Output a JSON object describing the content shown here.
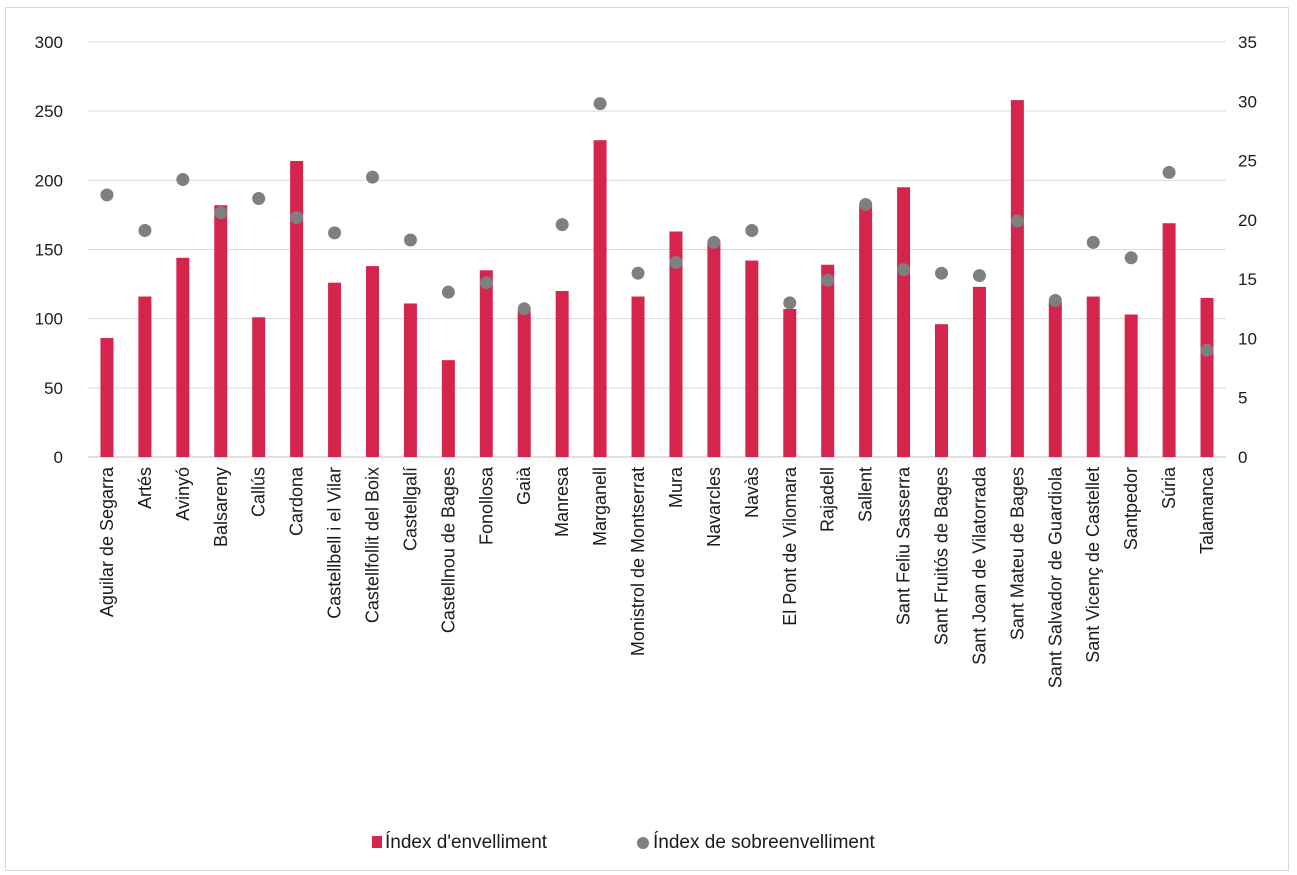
{
  "chart_data": {
    "type": "bar",
    "categories": [
      "Aguilar de Segarra",
      "Artés",
      "Avinyó",
      "Balsareny",
      "Callús",
      "Cardona",
      "Castellbell i el Vilar",
      "Castellfollit del Boix",
      "Castellgalí",
      "Castellnou de Bages",
      "Fonollosa",
      "Gaià",
      "Manresa",
      "Marganell",
      "Monistrol de Montserrat",
      "Mura",
      "Navarcles",
      "Navàs",
      "El Pont de Vilomara",
      "Rajadell",
      "Sallent",
      "Sant Feliu Sasserra",
      "Sant Fruitós de Bages",
      "Sant Joan de Vilatorrada",
      "Sant Mateu de Bages",
      "Sant Salvador de Guardiola",
      "Sant Vicenç de Castellet",
      "Santpedor",
      "Súria",
      "Talamanca"
    ],
    "series": [
      {
        "name": "Índex d'envelliment",
        "kind": "bar",
        "axis": "left",
        "color": "#d6254d",
        "values": [
          86,
          116,
          144,
          182,
          101,
          214,
          126,
          138,
          111,
          70,
          135,
          106,
          120,
          229,
          116,
          163,
          156,
          142,
          107,
          139,
          182,
          195,
          96,
          123,
          258,
          112,
          116,
          103,
          169,
          115
        ]
      },
      {
        "name": "Índex de sobreenvelliment",
        "kind": "scatter",
        "axis": "right",
        "color": "#7f7f7f",
        "values": [
          22.1,
          19.1,
          23.4,
          20.6,
          21.8,
          20.2,
          18.9,
          23.6,
          18.3,
          13.9,
          14.7,
          12.5,
          19.6,
          29.8,
          15.5,
          16.4,
          18.1,
          19.1,
          13.0,
          14.9,
          21.3,
          15.8,
          15.5,
          15.3,
          19.9,
          13.2,
          18.1,
          16.8,
          24.0,
          9.0
        ]
      }
    ],
    "ylim_left": [
      0,
      300
    ],
    "yticks_left": [
      "0",
      "50",
      "100",
      "150",
      "200",
      "250",
      "300"
    ],
    "ylim_right": [
      0,
      35
    ],
    "yticks_right": [
      "0",
      "5",
      "10",
      "15",
      "20",
      "25",
      "30",
      "35"
    ],
    "grid": true,
    "legend_position": "bottom"
  }
}
